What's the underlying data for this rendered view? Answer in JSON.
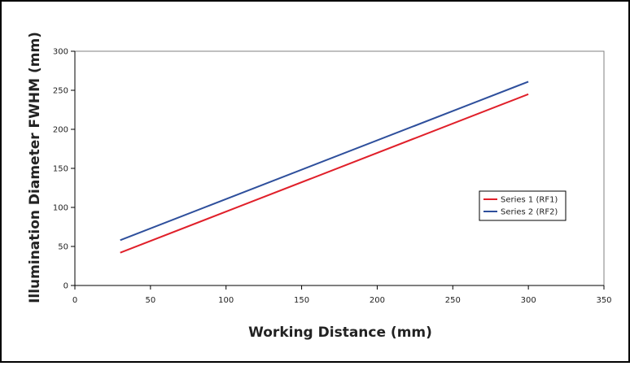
{
  "chart_data": {
    "type": "line",
    "title": "",
    "xlabel": "Working Distance (mm)",
    "ylabel": "Illumination Diameter FWHM (mm)",
    "xlim": [
      0,
      350
    ],
    "ylim": [
      0,
      300
    ],
    "xticks": [
      0,
      50,
      100,
      150,
      200,
      250,
      300,
      350
    ],
    "yticks": [
      0,
      50,
      100,
      150,
      200,
      250,
      300
    ],
    "grid": false,
    "legend_position": "right",
    "series": [
      {
        "name": "Series 1 (RF1)",
        "color": "#e0202a",
        "x": [
          30,
          300
        ],
        "y": [
          42,
          245
        ]
      },
      {
        "name": "Series 2 (RF2)",
        "color": "#2e4f9c",
        "x": [
          30,
          300
        ],
        "y": [
          58,
          261
        ]
      }
    ]
  }
}
